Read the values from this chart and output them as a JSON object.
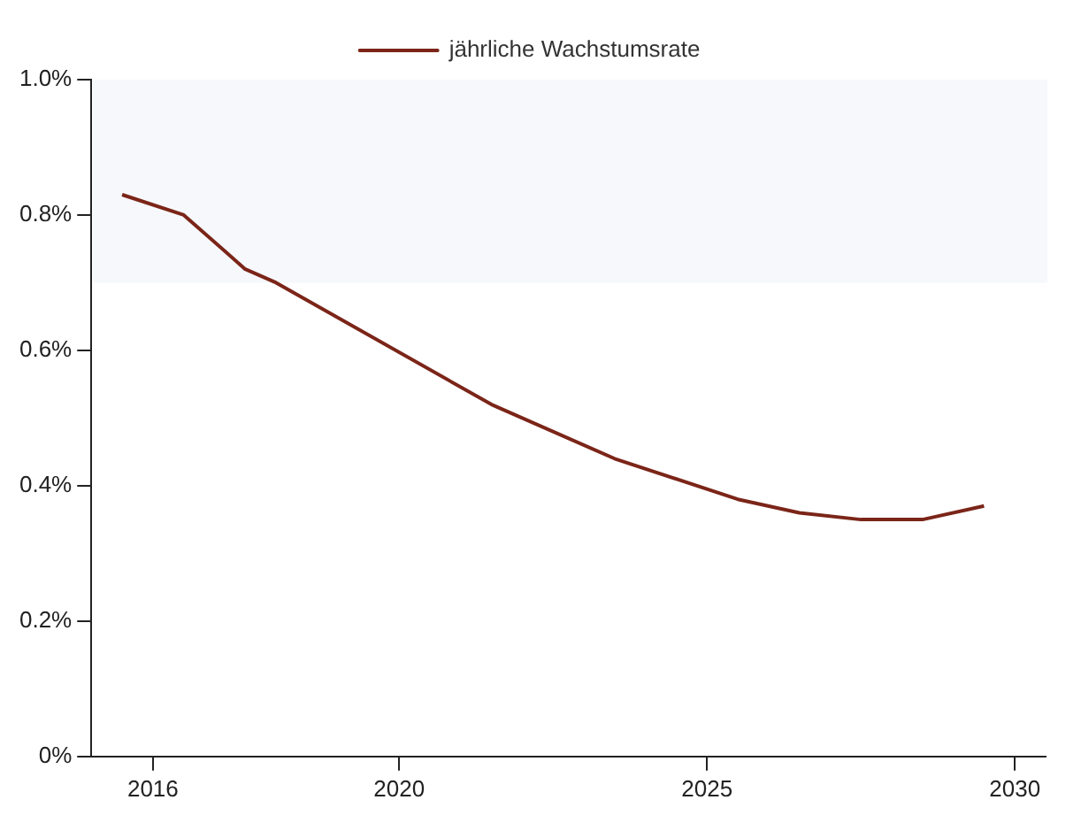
{
  "chart_data": {
    "type": "line",
    "x": [
      2015.5,
      2016.5,
      2017.5,
      2018,
      2021.5,
      2023.5,
      2025.5,
      2026.5,
      2027.5,
      2028.5,
      2029.5
    ],
    "series": [
      {
        "name": "jährliche Wachstumsrate",
        "color": "#7b2518",
        "values": [
          0.83,
          0.8,
          0.72,
          0.7,
          0.52,
          0.44,
          0.38,
          0.36,
          0.35,
          0.35,
          0.37
        ]
      }
    ],
    "xlim": [
      2015,
      2030.5
    ],
    "xticks": [
      2016,
      2020,
      2025,
      2030
    ],
    "ylim": [
      0,
      1.0
    ],
    "yticks": [
      {
        "value": 0,
        "label": "0%"
      },
      {
        "value": 0.2,
        "label": "0.2%"
      },
      {
        "value": 0.4,
        "label": "0.4%"
      },
      {
        "value": 0.6,
        "label": "0.6%"
      },
      {
        "value": 0.8,
        "label": "0.8%"
      },
      {
        "value": 1.0,
        "label": "1.0%"
      }
    ],
    "bands": [
      {
        "axis": "y",
        "from": 0.7,
        "to": 1.0,
        "color": "#f6f8fc"
      }
    ],
    "grid": false,
    "legend": "top",
    "marker": "none",
    "line_style": "solid"
  }
}
